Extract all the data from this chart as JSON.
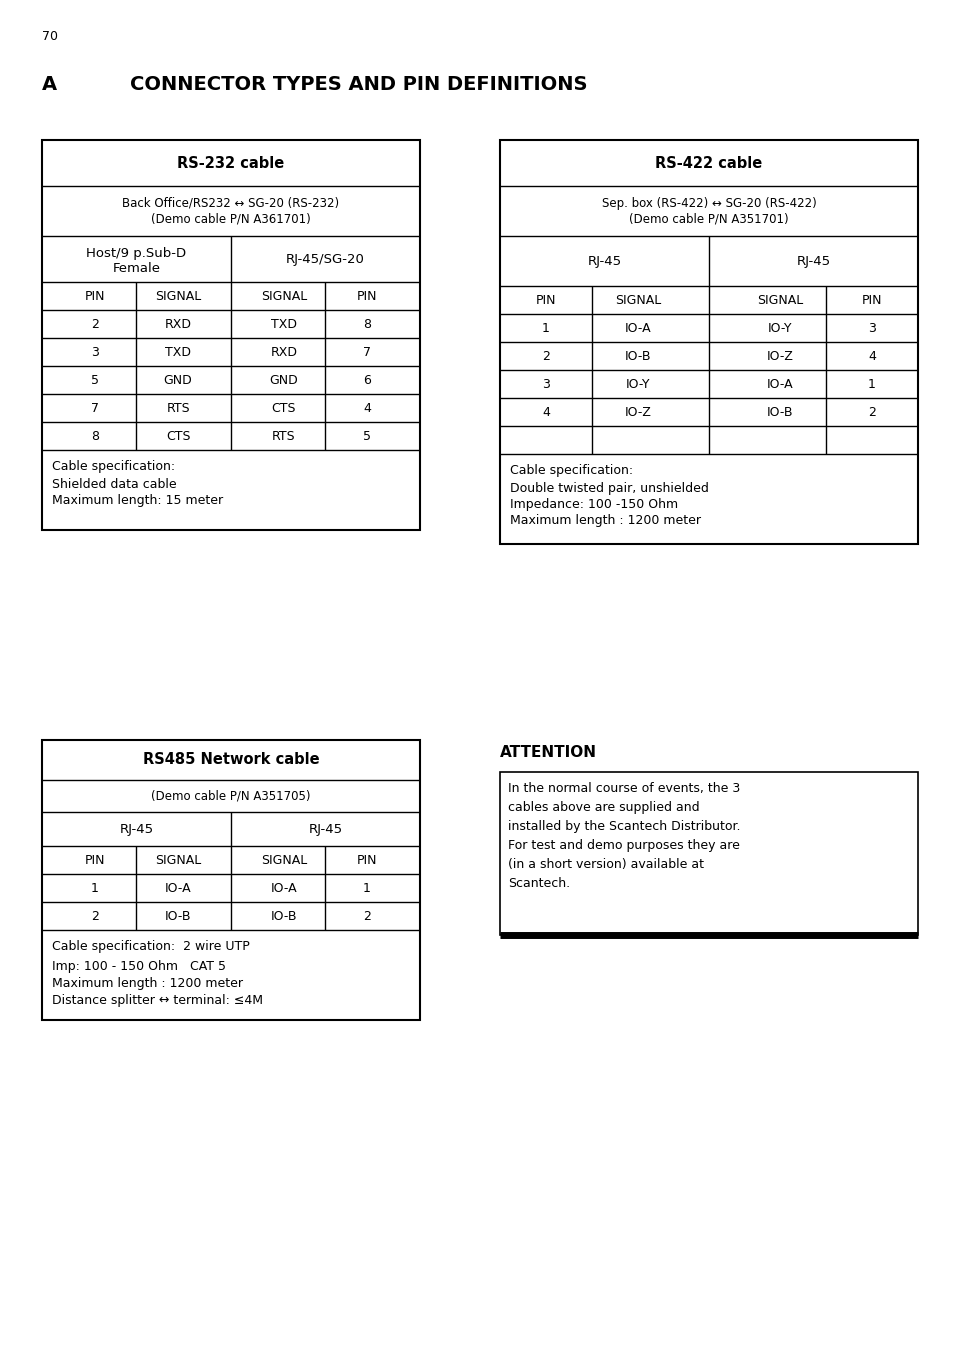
{
  "page_number": "70",
  "title_a": "A",
  "title_rest": "CONNECTOR TYPES AND PIN DEFINITIONS",
  "bg_color": "#ffffff",
  "rs232": {
    "title": "RS-232 cable",
    "subtitle1": "Back Office/RS232 ↔ SG-20 (RS-232)",
    "subtitle2": "(Demo cable P/N A361701)",
    "col1_header": "Host/9 p.Sub-D\nFemale",
    "col2_header": "RJ-45/SG-20",
    "pin_header": [
      "PIN",
      "SIGNAL",
      "SIGNAL",
      "PIN"
    ],
    "rows": [
      [
        "2",
        "RXD",
        "TXD",
        "8"
      ],
      [
        "3",
        "TXD",
        "RXD",
        "7"
      ],
      [
        "5",
        "GND",
        "GND",
        "6"
      ],
      [
        "7",
        "RTS",
        "CTS",
        "4"
      ],
      [
        "8",
        "CTS",
        "RTS",
        "5"
      ]
    ],
    "spec_title": "Cable specification:",
    "spec_line1": "Shielded data cable",
    "spec_line2": "Maximum length: 15 meter"
  },
  "rs422": {
    "title": "RS-422 cable",
    "subtitle1": "Sep. box (RS-422) ↔ SG-20 (RS-422)",
    "subtitle2": "(Demo cable P/N A351701)",
    "col1_header": "RJ-45",
    "col2_header": "RJ-45",
    "pin_header": [
      "PIN",
      "SIGNAL",
      "SIGNAL",
      "PIN"
    ],
    "rows": [
      [
        "1",
        "IO-A",
        "IO-Y",
        "3"
      ],
      [
        "2",
        "IO-B",
        "IO-Z",
        "4"
      ],
      [
        "3",
        "IO-Y",
        "IO-A",
        "1"
      ],
      [
        "4",
        "IO-Z",
        "IO-B",
        "2"
      ],
      [
        "",
        "",
        "",
        ""
      ]
    ],
    "spec_title": "Cable specification:",
    "spec_line1": "Double twisted pair, unshielded",
    "spec_line2": "Impedance: 100 -150 Ohm",
    "spec_line3": "Maximum length : 1200 meter"
  },
  "rs485": {
    "title": "RS485 Network cable",
    "subtitle1": "(Demo cable P/N A351705)",
    "col1_header": "RJ-45",
    "col2_header": "RJ-45",
    "pin_header": [
      "PIN",
      "SIGNAL",
      "SIGNAL",
      "PIN"
    ],
    "rows": [
      [
        "1",
        "IO-A",
        "IO-A",
        "1"
      ],
      [
        "2",
        "IO-B",
        "IO-B",
        "2"
      ]
    ],
    "spec_title": "Cable specification:  2 wire UTP",
    "spec_line1": "Imp: 100 - 150 Ohm   CAT 5",
    "spec_line2": "Maximum length : 1200 meter",
    "spec_line3": "Distance splitter ↔ terminal: ≤4M"
  },
  "attention": {
    "title": "ATTENTION",
    "body_lines": [
      "In the normal course of events, the 3",
      "cables above are supplied and",
      "installed by the Scantech Distributor.",
      "For test and demo purposes they are",
      "(in a short version) available at",
      "Scantech."
    ]
  }
}
